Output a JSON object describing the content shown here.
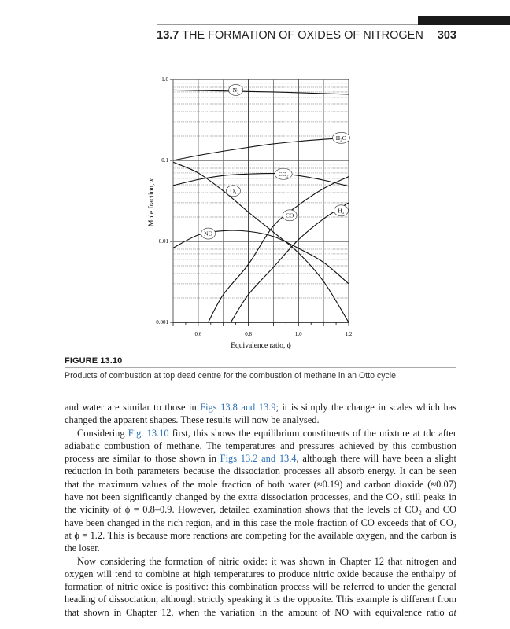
{
  "header": {
    "section_number": "13.7",
    "section_title": "THE FORMATION OF OXIDES OF NITROGEN",
    "page_number": "303"
  },
  "figure": {
    "label": "FIGURE 13.10",
    "caption": "Products of combustion at top dead centre for the combustion of methane in an Otto cycle."
  },
  "chart_data": {
    "type": "line",
    "title": "",
    "xlabel": "Equivalence ratio, ϕ",
    "ylabel_text": "Mole fraction, ",
    "ylabel_var": "x",
    "xlim": [
      0.5,
      1.2
    ],
    "ylim": [
      0.001,
      1.0
    ],
    "yscale": "log",
    "grid": true,
    "x_ticks": [
      "0.6",
      "0.8",
      "1.0",
      "1.2"
    ],
    "y_ticks": [
      "1.0",
      "0.1",
      "0.01",
      "0.001"
    ],
    "series": [
      {
        "name": "N₂",
        "points": [
          [
            0.5,
            0.74
          ],
          [
            0.6,
            0.73
          ],
          [
            0.7,
            0.72
          ],
          [
            0.8,
            0.71
          ],
          [
            0.9,
            0.7
          ],
          [
            1.0,
            0.685
          ],
          [
            1.1,
            0.67
          ],
          [
            1.2,
            0.655
          ]
        ],
        "label_at": [
          0.75,
          0.74
        ]
      },
      {
        "name": "H₂O",
        "points": [
          [
            0.5,
            0.1
          ],
          [
            0.6,
            0.115
          ],
          [
            0.7,
            0.13
          ],
          [
            0.8,
            0.145
          ],
          [
            0.9,
            0.16
          ],
          [
            1.0,
            0.172
          ],
          [
            1.1,
            0.182
          ],
          [
            1.2,
            0.19
          ]
        ],
        "label_at": [
          1.17,
          0.19
        ]
      },
      {
        "name": "CO₂",
        "points": [
          [
            0.5,
            0.049
          ],
          [
            0.6,
            0.058
          ],
          [
            0.7,
            0.065
          ],
          [
            0.8,
            0.068
          ],
          [
            0.9,
            0.069
          ],
          [
            1.0,
            0.065
          ],
          [
            1.1,
            0.057
          ],
          [
            1.2,
            0.048
          ]
        ],
        "label_at": [
          0.94,
          0.068
        ]
      },
      {
        "name": "O₂",
        "points": [
          [
            0.5,
            0.095
          ],
          [
            0.6,
            0.07
          ],
          [
            0.7,
            0.042
          ],
          [
            0.8,
            0.023
          ],
          [
            0.9,
            0.013
          ],
          [
            1.0,
            0.0072
          ],
          [
            1.1,
            0.0032
          ],
          [
            1.2,
            0.001
          ]
        ],
        "label_at": [
          0.74,
          0.042
        ]
      },
      {
        "name": "CO",
        "points": [
          [
            0.64,
            0.001
          ],
          [
            0.7,
            0.0022
          ],
          [
            0.8,
            0.0052
          ],
          [
            0.9,
            0.0155
          ],
          [
            1.0,
            0.028
          ],
          [
            1.1,
            0.045
          ],
          [
            1.2,
            0.063
          ]
        ],
        "label_at": [
          0.965,
          0.021
        ]
      },
      {
        "name": "H₂",
        "points": [
          [
            0.73,
            0.001
          ],
          [
            0.8,
            0.0022
          ],
          [
            0.9,
            0.0048
          ],
          [
            1.0,
            0.0105
          ],
          [
            1.1,
            0.019
          ],
          [
            1.2,
            0.03
          ]
        ],
        "label_at": [
          1.17,
          0.024
        ]
      },
      {
        "name": "NO",
        "points": [
          [
            0.5,
            0.0083
          ],
          [
            0.6,
            0.012
          ],
          [
            0.7,
            0.0135
          ],
          [
            0.8,
            0.0133
          ],
          [
            0.9,
            0.0115
          ],
          [
            1.0,
            0.0082
          ],
          [
            1.1,
            0.0055
          ],
          [
            1.2,
            0.003
          ]
        ],
        "label_at": [
          0.64,
          0.0125
        ]
      }
    ]
  },
  "body": {
    "p1": [
      "and water are similar to those in ",
      "Figs 13.8 and 13.9",
      "; it is simply the change in scales which has changed the apparent shapes. These results will now be analysed."
    ],
    "p2": [
      "Considering ",
      "Fig. 13.10",
      " first, this shows the equilibrium constituents of the mixture at tdc after adiabatic combustion of methane. The temperatures and pressures achieved by this combustion process are similar to those shown in ",
      "Figs 13.2 and 13.4",
      ", although there will have been a slight reduction in both parameters because the dissociation processes all absorb energy. It can be seen that the maximum values of the mole fraction of both water (≈0.19) and carbon dioxide (≈0.07) have not been significantly changed by the extra dissociation processes, and the CO₂ still peaks in the vicinity of ϕ = 0.8–0.9. However, detailed examination shows that the levels of CO₂ and CO have been changed in the rich region, and in this case the mole fraction of CO exceeds that of CO₂ at ϕ = 1.2. This is because more reactions are competing for the available oxygen, and the carbon is the loser."
    ],
    "p3": [
      "Now considering the formation of nitric oxide: it was shown in Chapter 12 that nitrogen and oxygen will tend to combine at high temperatures to produce nitric oxide because the enthalpy of formation of nitric oxide is positive: this combination process will be referred to under the general heading of dissociation, although strictly speaking it is the opposite. This example is different from that shown in Chapter 12, when the variation in the amount of NO with equivalence ratio ",
      "at"
    ]
  },
  "colors": {
    "link": "#2a6fb5",
    "text": "#1a1a1a",
    "header_bar": "#1a1a1a"
  }
}
